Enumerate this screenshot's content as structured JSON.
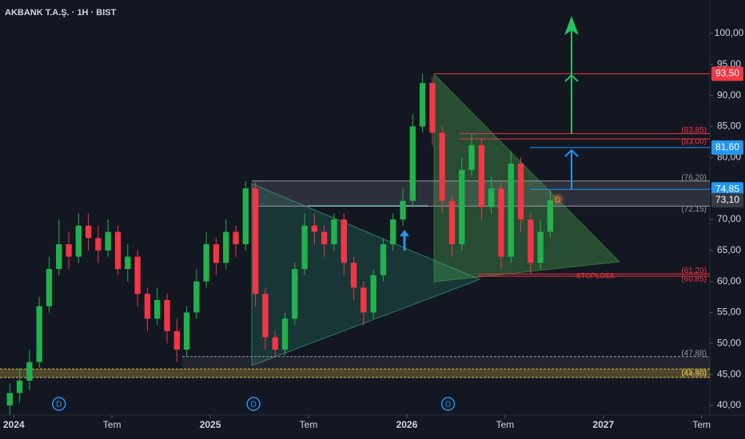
{
  "chart_data": {
    "type": "candlestick",
    "title": "AKBANK T.A.Ş. · 1H · BIST",
    "x": [
      2023.98,
      2024.03,
      2024.08,
      2024.13,
      2024.18,
      2024.23,
      2024.28,
      2024.33,
      2024.38,
      2024.43,
      2024.48,
      2024.53,
      2024.58,
      2024.63,
      2024.68,
      2024.73,
      2024.78,
      2024.83,
      2024.88,
      2024.93,
      2024.98,
      2025.03,
      2025.08,
      2025.13,
      2025.18,
      2025.23,
      2025.28,
      2025.33,
      2025.38,
      2025.43,
      2025.48,
      2025.53,
      2025.58,
      2025.63,
      2025.68,
      2025.73,
      2025.78,
      2025.83,
      2025.88,
      2025.93,
      2025.98,
      2026.03,
      2026.08,
      2026.13,
      2026.18,
      2026.23,
      2026.28,
      2026.33,
      2026.38,
      2026.43,
      2026.48,
      2026.53,
      2026.58,
      2026.63,
      2026.68,
      2026.73
    ],
    "open": [
      40,
      42,
      44,
      47,
      56,
      62,
      66,
      64,
      69,
      67,
      65,
      68,
      62,
      64,
      58,
      54,
      57,
      52,
      49,
      55,
      60,
      66,
      63,
      68,
      66,
      75,
      58,
      51,
      49,
      54,
      62,
      69,
      68,
      66,
      70,
      63,
      59,
      55,
      61,
      66,
      70,
      73,
      85,
      92,
      84,
      73,
      66,
      78,
      82,
      72,
      75,
      64,
      79,
      70,
      63,
      68
    ],
    "high": [
      43.5,
      46,
      49,
      57.5,
      64,
      70,
      68,
      71,
      71,
      69,
      70,
      69,
      66,
      65,
      59,
      59,
      58,
      54,
      56,
      62,
      68,
      67,
      70,
      69,
      76.2,
      76,
      59,
      52,
      55,
      63,
      71,
      71,
      69,
      71,
      71,
      64,
      60,
      62,
      67,
      71,
      75,
      87,
      93.5,
      93,
      85,
      74,
      80,
      83.85,
      83,
      77,
      76,
      81,
      80,
      71,
      70,
      74.85
    ],
    "low": [
      38.5,
      40.5,
      42.5,
      46,
      55,
      61,
      62,
      63,
      65,
      63,
      64,
      61,
      60,
      56,
      52,
      53,
      50,
      47,
      48,
      54,
      59,
      61,
      62,
      64,
      65,
      56,
      49,
      47.9,
      48,
      53,
      61,
      66,
      64,
      65,
      61,
      57,
      53,
      54,
      60,
      65,
      69,
      72,
      84,
      82,
      71,
      64,
      65,
      77,
      70,
      71,
      62,
      63,
      68,
      61.3,
      62,
      67
    ],
    "close": [
      42,
      44,
      47,
      56,
      62,
      66,
      64,
      69,
      67,
      65,
      68,
      62,
      64,
      58,
      54,
      57,
      52,
      49,
      55,
      60,
      66,
      63,
      68,
      66,
      75,
      58,
      51,
      49,
      54,
      62,
      69,
      68,
      66,
      70,
      63,
      59,
      55,
      61,
      66,
      70,
      73,
      85,
      92,
      84,
      73,
      66,
      78,
      82,
      72,
      75,
      64,
      79,
      70,
      63,
      68,
      73.1
    ],
    "up_color": "#22b14c",
    "down_color": "#f23645",
    "xlim": [
      2023.93,
      2027.55
    ],
    "ylim": [
      38.45,
      105.4
    ],
    "xticks": [
      2024,
      {
        "value": 2024.5,
        "label": "Tem"
      },
      2025,
      {
        "value": 2025.5,
        "label": "Tem"
      },
      2026,
      {
        "value": 2026.5,
        "label": "Tem"
      },
      2027,
      {
        "value": 2027.5,
        "label": "Tem"
      }
    ],
    "yticks": [
      {
        "value": 40,
        "label": "40,00"
      },
      {
        "value": 45,
        "label": "45,00"
      },
      {
        "value": 50,
        "label": "50,00"
      },
      {
        "value": 55,
        "label": "55,00"
      },
      {
        "value": 60,
        "label": "60,00"
      },
      {
        "value": 65,
        "label": "65,00"
      },
      {
        "value": 70,
        "label": "70,00"
      },
      {
        "value": 75,
        "label": "75,00"
      },
      {
        "value": 80,
        "label": "80,00"
      },
      {
        "value": 85,
        "label": "85,00"
      },
      {
        "value": 90,
        "label": "90,00"
      },
      {
        "value": 95,
        "label": "95,00"
      },
      {
        "value": 100,
        "label": "100,00"
      }
    ],
    "levels": [
      {
        "value": 83.85,
        "label": "(83,85)",
        "color": "#f23645"
      },
      {
        "value": 83.0,
        "label": "(83,00)",
        "color": "#f23645"
      },
      {
        "value": 76.2,
        "label": "(76,20)",
        "color": "#9598a1"
      },
      {
        "value": 72.15,
        "label": "(72,15)",
        "color": "#9598a1"
      },
      {
        "value": 61.2,
        "label": "(61,20)",
        "color": "#f23645"
      },
      {
        "value": 60.85,
        "label": "(60,85)",
        "color": "#f23645"
      },
      {
        "value": 47.88,
        "label": "(47,88)",
        "color": "#9598a1"
      },
      {
        "value": 45.88,
        "label": "(45,88)",
        "color": "#d4b44a"
      },
      {
        "value": 44.5,
        "label": "(44,50)",
        "color": "#d4b44a"
      }
    ],
    "price_tags": [
      {
        "value": 93.5,
        "label": "93,50",
        "color": "#f23645"
      },
      {
        "value": 81.6,
        "label": "81,60",
        "color": "#2196f3"
      },
      {
        "value": 74.85,
        "label": "74,85",
        "color": "#2196f3"
      },
      {
        "value": 73.1,
        "label": "73,10",
        "color": "#363a45"
      }
    ],
    "stoploss": "STOPLOSS",
    "dividends": [
      {
        "x": 2024.23,
        "label": "D"
      },
      {
        "x": 2025.22,
        "label": "D"
      },
      {
        "x": 2026.21,
        "label": "D"
      }
    ],
    "marker": "D"
  }
}
